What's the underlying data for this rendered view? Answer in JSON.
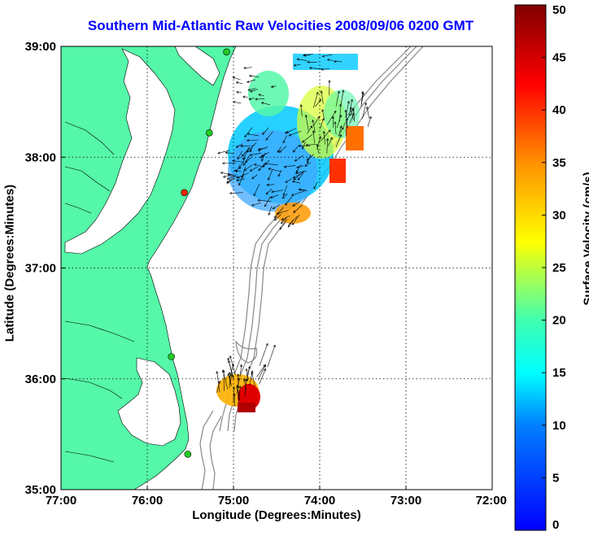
{
  "title": "Southern Mid-Atlantic Raw Velocities 2008/09/06 0200 GMT",
  "xlabel": "Longitude (Degrees:Minutes)",
  "ylabel": "Latitude (Degrees:Minutes)",
  "map": {
    "lon_range": [
      -77,
      -72
    ],
    "lat_range": [
      35,
      39
    ],
    "x_ticks": [
      {
        "value": -77,
        "label": "77:00"
      },
      {
        "value": -76,
        "label": "76:00"
      },
      {
        "value": -75,
        "label": "75:00"
      },
      {
        "value": -74,
        "label": "74:00"
      },
      {
        "value": -73,
        "label": "73:00"
      },
      {
        "value": -72,
        "label": "72:00"
      }
    ],
    "y_ticks": [
      {
        "value": 35,
        "label": "35:00"
      },
      {
        "value": 36,
        "label": "36:00"
      },
      {
        "value": 37,
        "label": "37:00"
      },
      {
        "value": 38,
        "label": "38:00"
      },
      {
        "value": 39,
        "label": "39:00"
      }
    ],
    "grid": "dotted",
    "land_color": "#55f7a8",
    "colormap": "jet"
  },
  "colorbar": {
    "label": "Surface Velocity (cm/s)",
    "range": [
      0,
      50
    ],
    "ticks": [
      "0",
      "5",
      "10",
      "15",
      "20",
      "25",
      "30",
      "35",
      "40",
      "45",
      "50"
    ]
  },
  "stations": [
    {
      "lon": -75.08,
      "lat": 38.95,
      "color": "#22cc22"
    },
    {
      "lon": -75.28,
      "lat": 38.22,
      "color": "#22cc22"
    },
    {
      "lon": -75.57,
      "lat": 37.68,
      "color": "#ff2200"
    },
    {
      "lon": -75.72,
      "lat": 36.2,
      "color": "#22cc22"
    },
    {
      "lon": -75.53,
      "lat": 35.32,
      "color": "#22cc22"
    }
  ]
}
